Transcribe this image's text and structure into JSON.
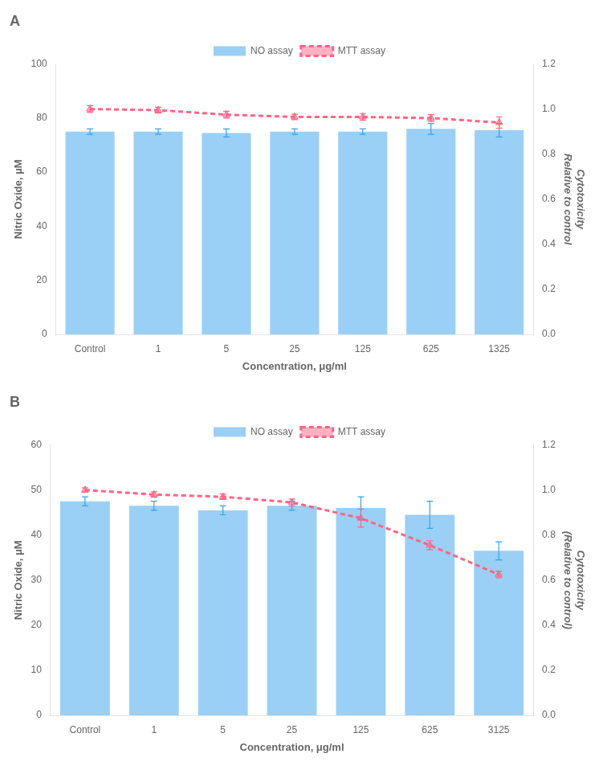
{
  "chart_data": [
    {
      "type": "bar",
      "title": "A",
      "categories": [
        "Control",
        "1",
        "5",
        "25",
        "125",
        "625",
        "1325"
      ],
      "series": [
        {
          "name": "NO assay",
          "values": [
            75.0,
            75.0,
            74.5,
            75.0,
            75.0,
            76.0,
            75.5
          ],
          "errors": [
            1.0,
            1.0,
            1.5,
            1.0,
            1.0,
            2.0,
            2.5
          ]
        },
        {
          "name": "MTT assay",
          "type": "line",
          "axis": "y2",
          "marker": "triangle",
          "line_style": "dashed",
          "values": [
            1.0,
            0.995,
            0.975,
            0.965,
            0.965,
            0.96,
            0.94
          ],
          "errors": [
            0.015,
            0.013,
            0.015,
            0.012,
            0.015,
            0.015,
            0.025
          ]
        }
      ],
      "xlabel": "Concentration, μg/ml",
      "ylabel": "Nitric Oxide, μM",
      "y2label": "Cytotoxicity\nRelative to control",
      "ylim": [
        0,
        100
      ],
      "yticks": [
        0,
        20,
        40,
        60,
        80,
        100
      ],
      "y2lim": [
        0.0,
        1.2
      ],
      "y2ticks": [
        {
          "value": 0.0,
          "label": "0.0"
        },
        0.2,
        0.4,
        0.6,
        0.8,
        {
          "value": 1.0,
          "label": "1.0"
        },
        1.2
      ],
      "grid": false,
      "legend": "top"
    },
    {
      "type": "bar",
      "title": "B",
      "categories": [
        "Control",
        "1",
        "5",
        "25",
        "125",
        "625",
        "3125"
      ],
      "series": [
        {
          "name": "NO assay",
          "values": [
            47.5,
            46.5,
            45.5,
            46.5,
            46.0,
            44.5,
            36.5
          ],
          "errors": [
            1.0,
            1.0,
            1.0,
            1.0,
            2.5,
            3.0,
            2.0
          ]
        },
        {
          "name": "MTT assay",
          "type": "line",
          "axis": "y2",
          "marker": "triangle",
          "line_style": "dashed",
          "values": [
            1.0,
            0.98,
            0.97,
            0.945,
            0.875,
            0.755,
            0.625
          ],
          "errors": [
            0.01,
            0.012,
            0.012,
            0.015,
            0.04,
            0.02,
            0.015
          ]
        }
      ],
      "xlabel": "Concentration, μg/ml",
      "ylabel": "Nitric Oxide, μM",
      "y2label": "Cytotoxicity\n(Relative to control)",
      "ylim": [
        0,
        60
      ],
      "yticks": [
        0,
        10,
        20,
        30,
        40,
        50,
        60
      ],
      "y2lim": [
        0.0,
        1.2
      ],
      "y2ticks": [
        {
          "value": 0.0,
          "label": "0.0"
        },
        0.2,
        0.4,
        0.6,
        0.8,
        {
          "value": 1.0,
          "label": "1.0"
        },
        1.2
      ],
      "grid": false,
      "legend": "top"
    }
  ]
}
